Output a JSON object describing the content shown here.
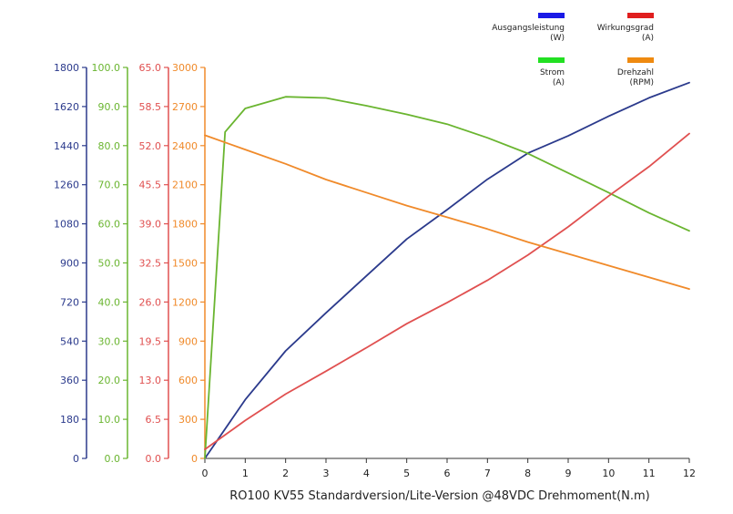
{
  "chart_data": {
    "type": "line",
    "xlabel": "RO100 KV55 Standardversion/Lite-Version @48VDC Drehmoment(N.m)",
    "x_axis": {
      "range": [
        0,
        12
      ],
      "ticks": [
        "0",
        "1",
        "2",
        "3",
        "4",
        "5",
        "6",
        "7",
        "8",
        "9",
        "10",
        "11",
        "12"
      ]
    },
    "y_axes": [
      {
        "id": "power",
        "color": "#2b3a8c",
        "range": [
          0,
          1800
        ],
        "ticks": [
          "0",
          "180",
          "360",
          "540",
          "720",
          "900",
          "1080",
          "1260",
          "1440",
          "1620",
          "1800"
        ]
      },
      {
        "id": "current",
        "color": "#6ab530",
        "range": [
          0,
          100
        ],
        "ticks": [
          "0.0",
          "10.0",
          "20.0",
          "30.0",
          "40.0",
          "50.0",
          "60.0",
          "70.0",
          "80.0",
          "90.0",
          "100.0"
        ]
      },
      {
        "id": "efficiency",
        "color": "#e05050",
        "range": [
          0,
          65
        ],
        "ticks": [
          "0.0",
          "6.5",
          "13.0",
          "19.5",
          "26.0",
          "32.5",
          "39.0",
          "45.5",
          "52.0",
          "58.5",
          "65.0"
        ]
      },
      {
        "id": "speed",
        "color": "#f08a2a",
        "range": [
          0,
          3000
        ],
        "ticks": [
          "0",
          "300",
          "600",
          "900",
          "1200",
          "1500",
          "1800",
          "2100",
          "2400",
          "2700",
          "3000"
        ]
      }
    ],
    "legend": {
      "placement": "top-right",
      "entries": [
        {
          "label": "Ausgangsleistung",
          "unit": "(W)",
          "color": "#1a1ae6"
        },
        {
          "label": "Wirkungsgrad",
          "unit": "(A)",
          "color": "#e01e1e"
        },
        {
          "label": "Strom",
          "unit": "(A)",
          "color": "#22e022"
        },
        {
          "label": "Drehzahl",
          "unit": "(RPM)",
          "color": "#ef8a10"
        }
      ]
    },
    "series": [
      {
        "axis": "power",
        "color": "#2b3a8c",
        "x": [
          0,
          1,
          2,
          3,
          4,
          5,
          6,
          7,
          8,
          9,
          10,
          11,
          12
        ],
        "values": [
          0,
          270,
          495,
          670,
          840,
          1010,
          1145,
          1285,
          1405,
          1485,
          1575,
          1660,
          1730
        ]
      },
      {
        "axis": "current",
        "color": "#6ab530",
        "x": [
          0,
          0.5,
          1,
          2,
          3,
          4,
          5,
          6,
          7,
          8,
          9,
          10,
          11,
          12
        ],
        "values": [
          0,
          83.5,
          89.5,
          92.5,
          92.2,
          90.2,
          88.0,
          85.5,
          82.0,
          78.0,
          73.0,
          68.0,
          62.8,
          58.2
        ]
      },
      {
        "axis": "efficiency",
        "color": "#e05050",
        "x": [
          0,
          1,
          2,
          3,
          4,
          5,
          6,
          7,
          8,
          9,
          10,
          11,
          12
        ],
        "values": [
          1.5,
          6.3,
          10.7,
          14.5,
          18.4,
          22.4,
          25.9,
          29.6,
          33.8,
          38.5,
          43.6,
          48.5,
          54.0
        ]
      },
      {
        "axis": "speed",
        "color": "#f08a2a",
        "x": [
          0,
          1,
          2,
          3,
          4,
          5,
          6,
          7,
          8,
          9,
          10,
          11,
          12
        ],
        "values": [
          2480,
          2370,
          2260,
          2140,
          2040,
          1940,
          1850,
          1760,
          1660,
          1570,
          1480,
          1390,
          1300
        ]
      }
    ]
  }
}
